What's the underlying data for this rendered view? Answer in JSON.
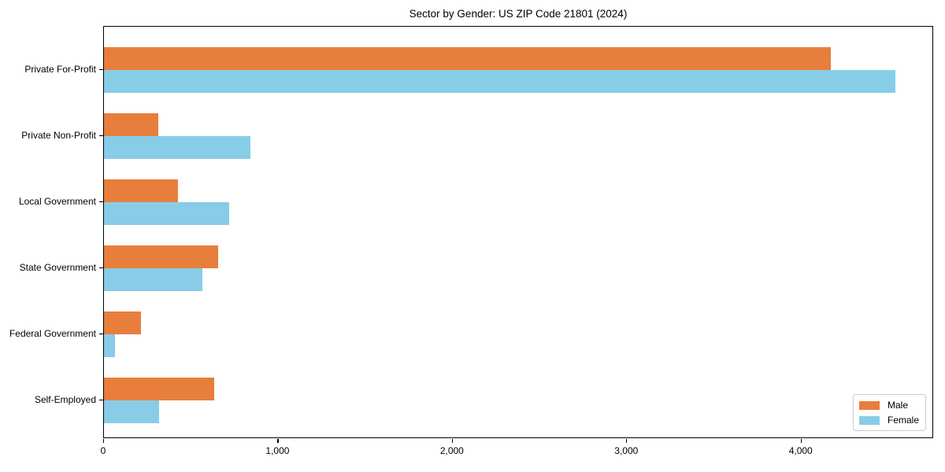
{
  "title": "Sector by Gender: US ZIP Code 21801 (2024)",
  "chart_data": {
    "type": "bar",
    "orientation": "horizontal",
    "title": "Sector by Gender: US ZIP Code 21801 (2024)",
    "categories": [
      "Private For-Profit",
      "Private Non-Profit",
      "Local Government",
      "State Government",
      "Federal Government",
      "Self-Employed"
    ],
    "series": [
      {
        "name": "Male",
        "color": "#E87E3C",
        "values": [
          4170,
          310,
          425,
          655,
          210,
          630
        ]
      },
      {
        "name": "Female",
        "color": "#87CDE8",
        "values": [
          4540,
          840,
          720,
          565,
          65,
          315
        ]
      }
    ],
    "xlabel": "",
    "ylabel": "",
    "xlim": [
      0,
      4760
    ],
    "xticks": [
      0,
      1000,
      2000,
      3000,
      4000
    ],
    "xtick_labels": [
      "0",
      "1,000",
      "2,000",
      "3,000",
      "4,000"
    ],
    "grid": false,
    "legend_position": "lower right"
  },
  "legend": {
    "items": [
      {
        "label": "Male",
        "color": "#E87E3C"
      },
      {
        "label": "Female",
        "color": "#87CDE8"
      }
    ]
  }
}
